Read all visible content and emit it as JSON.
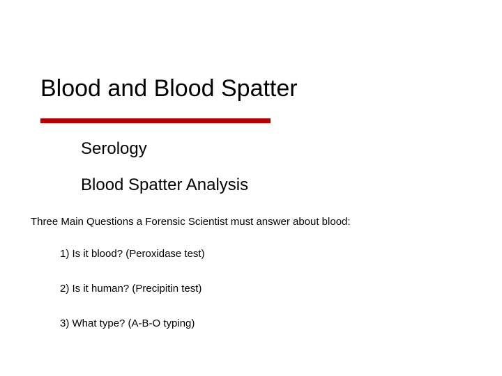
{
  "slide": {
    "title": "Blood and Blood Spatter",
    "subtitle1": "Serology",
    "subtitle2": "Blood Spatter Analysis",
    "questions_intro": "Three Main Questions a Forensic Scientist must answer about blood:",
    "q1": "1) Is it blood? (Peroxidase test)",
    "q2": "2) Is it human? (Precipitin test)",
    "q3": "3) What type? (A-B-O typing)"
  },
  "style": {
    "background_color": "#ffffff",
    "text_color": "#000000",
    "divider_color": "#b30000",
    "divider_width": 330,
    "divider_height": 7,
    "title_fontsize": 34,
    "subtitle_fontsize": 24,
    "body_fontsize": 15,
    "font_family": "Verdana"
  }
}
